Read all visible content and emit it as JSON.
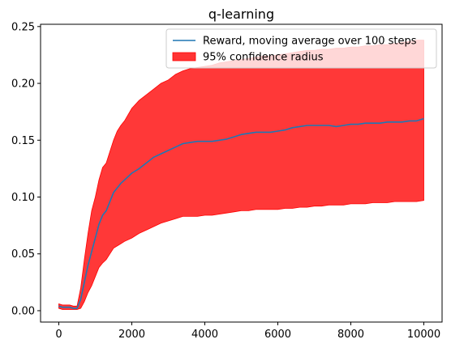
{
  "chart_data": {
    "type": "line",
    "title": "q-learning",
    "xlabel": "",
    "ylabel": "",
    "xlim": [
      -500,
      10500
    ],
    "ylim": [
      -0.01,
      0.252
    ],
    "x_ticks": [
      0,
      2000,
      4000,
      6000,
      8000,
      10000
    ],
    "x_tick_labels": [
      "0",
      "2000",
      "4000",
      "6000",
      "8000",
      "10000"
    ],
    "y_ticks": [
      0.0,
      0.05,
      0.1,
      0.15,
      0.2,
      0.25
    ],
    "y_tick_labels": [
      "0.00",
      "0.05",
      "0.10",
      "0.15",
      "0.20",
      "0.25"
    ],
    "grid": false,
    "legend_position": "top-right",
    "colors": {
      "line": "#1f77b4",
      "band": "#ff3434",
      "band_edge": "#ff0000"
    },
    "series": [
      {
        "name": "Reward, moving average over 100 steps",
        "kind": "line",
        "x": [
          0,
          100,
          200,
          300,
          400,
          500,
          600,
          700,
          800,
          900,
          1000,
          1100,
          1200,
          1300,
          1400,
          1500,
          1600,
          1700,
          1800,
          2000,
          2200,
          2400,
          2600,
          2800,
          3000,
          3200,
          3400,
          3600,
          3800,
          4000,
          4200,
          4400,
          4600,
          4800,
          5000,
          5200,
          5400,
          5600,
          5800,
          6000,
          6200,
          6400,
          6600,
          6800,
          7000,
          7200,
          7400,
          7600,
          7800,
          8000,
          8200,
          8400,
          8600,
          8800,
          9000,
          9200,
          9400,
          9600,
          9800,
          10000
        ],
        "y": [
          0.004,
          0.003,
          0.003,
          0.003,
          0.002,
          0.002,
          0.01,
          0.025,
          0.04,
          0.052,
          0.064,
          0.076,
          0.084,
          0.088,
          0.096,
          0.104,
          0.108,
          0.112,
          0.115,
          0.121,
          0.125,
          0.13,
          0.135,
          0.138,
          0.141,
          0.144,
          0.147,
          0.148,
          0.149,
          0.149,
          0.149,
          0.15,
          0.151,
          0.153,
          0.155,
          0.156,
          0.157,
          0.157,
          0.157,
          0.158,
          0.159,
          0.161,
          0.162,
          0.163,
          0.163,
          0.163,
          0.163,
          0.162,
          0.163,
          0.164,
          0.164,
          0.165,
          0.165,
          0.165,
          0.166,
          0.166,
          0.166,
          0.167,
          0.167,
          0.169
        ]
      },
      {
        "name": "95% confidence radius",
        "kind": "band",
        "x": [
          0,
          100,
          200,
          300,
          400,
          500,
          600,
          700,
          800,
          900,
          1000,
          1100,
          1200,
          1300,
          1400,
          1500,
          1600,
          1700,
          1800,
          2000,
          2200,
          2400,
          2600,
          2800,
          3000,
          3200,
          3400,
          3600,
          3800,
          4000,
          4200,
          4400,
          4600,
          4800,
          5000,
          5200,
          5400,
          5600,
          5800,
          6000,
          6200,
          6400,
          6600,
          6800,
          7000,
          7200,
          7400,
          7600,
          7800,
          8000,
          8200,
          8400,
          8600,
          8800,
          9000,
          9200,
          9400,
          9600,
          9800,
          10000
        ],
        "upper": [
          0.006,
          0.005,
          0.005,
          0.005,
          0.004,
          0.004,
          0.02,
          0.045,
          0.068,
          0.088,
          0.1,
          0.115,
          0.126,
          0.13,
          0.14,
          0.15,
          0.158,
          0.163,
          0.167,
          0.178,
          0.185,
          0.19,
          0.195,
          0.2,
          0.203,
          0.208,
          0.211,
          0.213,
          0.214,
          0.215,
          0.216,
          0.218,
          0.219,
          0.22,
          0.221,
          0.222,
          0.223,
          0.224,
          0.224,
          0.225,
          0.226,
          0.227,
          0.228,
          0.229,
          0.229,
          0.23,
          0.23,
          0.231,
          0.231,
          0.232,
          0.232,
          0.233,
          0.233,
          0.234,
          0.234,
          0.235,
          0.236,
          0.237,
          0.238,
          0.238
        ],
        "lower": [
          0.002,
          0.001,
          0.001,
          0.001,
          0.001,
          0.001,
          0.002,
          0.008,
          0.016,
          0.022,
          0.03,
          0.038,
          0.042,
          0.045,
          0.05,
          0.055,
          0.057,
          0.059,
          0.061,
          0.064,
          0.068,
          0.071,
          0.074,
          0.077,
          0.079,
          0.081,
          0.083,
          0.083,
          0.083,
          0.084,
          0.084,
          0.085,
          0.086,
          0.087,
          0.088,
          0.088,
          0.089,
          0.089,
          0.089,
          0.089,
          0.09,
          0.09,
          0.091,
          0.091,
          0.092,
          0.092,
          0.093,
          0.093,
          0.093,
          0.094,
          0.094,
          0.094,
          0.095,
          0.095,
          0.095,
          0.096,
          0.096,
          0.096,
          0.096,
          0.097
        ]
      }
    ]
  }
}
